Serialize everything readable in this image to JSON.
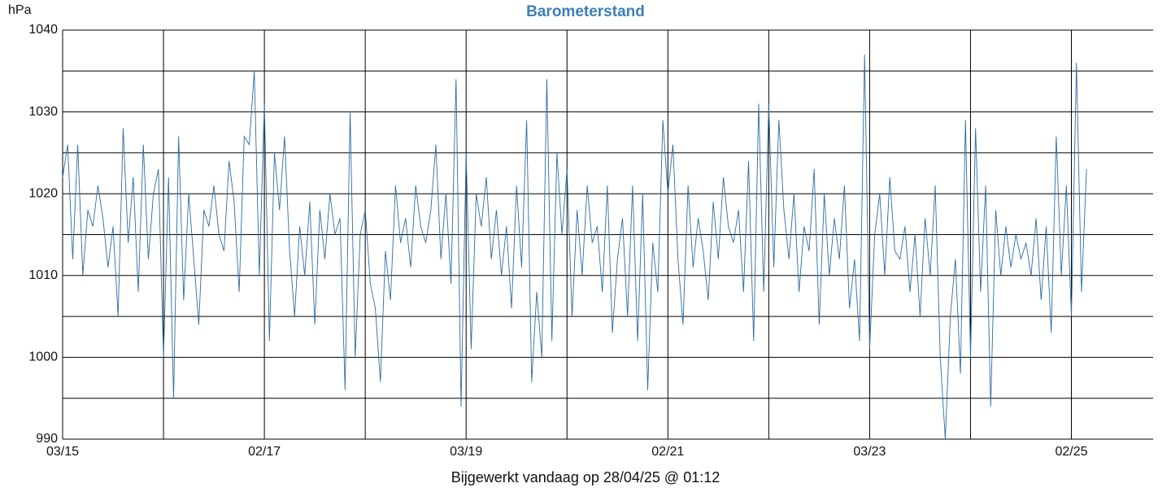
{
  "chart_data": {
    "type": "line",
    "title": "Barometerstand",
    "y_label": "hPa",
    "footer": "Bijgewerkt vandaag op 28/04/25 @ 01:12",
    "x": [
      2015.17,
      2015.22,
      2015.27,
      2015.32,
      2015.37,
      2015.42,
      2015.47,
      2015.52,
      2015.57,
      2015.62,
      2015.67,
      2015.72,
      2015.77,
      2015.82,
      2015.87,
      2015.92,
      2015.97,
      2016.02,
      2016.07,
      2016.12,
      2016.17,
      2016.22,
      2016.27,
      2016.32,
      2016.37,
      2016.42,
      2016.47,
      2016.52,
      2016.57,
      2016.62,
      2016.67,
      2016.72,
      2016.77,
      2016.82,
      2016.87,
      2016.92,
      2016.97,
      2017.02,
      2017.07,
      2017.12,
      2017.17,
      2017.22,
      2017.27,
      2017.32,
      2017.37,
      2017.42,
      2017.47,
      2017.52,
      2017.57,
      2017.62,
      2017.67,
      2017.72,
      2017.77,
      2017.82,
      2017.87,
      2017.92,
      2017.97,
      2018.02,
      2018.07,
      2018.12,
      2018.17,
      2018.22,
      2018.27,
      2018.32,
      2018.37,
      2018.42,
      2018.47,
      2018.52,
      2018.57,
      2018.62,
      2018.67,
      2018.72,
      2018.77,
      2018.82,
      2018.87,
      2018.92,
      2018.97,
      2019.02,
      2019.07,
      2019.12,
      2019.17,
      2019.22,
      2019.27,
      2019.32,
      2019.37,
      2019.42,
      2019.47,
      2019.52,
      2019.57,
      2019.62,
      2019.67,
      2019.72,
      2019.77,
      2019.82,
      2019.87,
      2019.92,
      2019.97,
      2020.02,
      2020.07,
      2020.12,
      2020.17,
      2020.22,
      2020.27,
      2020.32,
      2020.37,
      2020.42,
      2020.47,
      2020.52,
      2020.57,
      2020.62,
      2020.67,
      2020.72,
      2020.77,
      2020.82,
      2020.87,
      2020.92,
      2020.97,
      2021.02,
      2021.07,
      2021.12,
      2021.17,
      2021.22,
      2021.27,
      2021.32,
      2021.37,
      2021.42,
      2021.47,
      2021.52,
      2021.57,
      2021.62,
      2021.67,
      2021.72,
      2021.77,
      2021.82,
      2021.87,
      2021.92,
      2021.97,
      2022.02,
      2022.07,
      2022.12,
      2022.17,
      2022.22,
      2022.27,
      2022.32,
      2022.37,
      2022.42,
      2022.47,
      2022.52,
      2022.57,
      2022.62,
      2022.67,
      2022.72,
      2022.77,
      2022.82,
      2022.87,
      2022.92,
      2022.97,
      2023.02,
      2023.07,
      2023.12,
      2023.17,
      2023.22,
      2023.27,
      2023.32,
      2023.37,
      2023.42,
      2023.47,
      2023.52,
      2023.57,
      2023.62,
      2023.67,
      2023.72,
      2023.77,
      2023.82,
      2023.87,
      2023.92,
      2023.97,
      2024.02,
      2024.07,
      2024.12,
      2024.17,
      2024.22,
      2024.27,
      2024.32,
      2024.37,
      2024.42,
      2024.47,
      2024.52,
      2024.57,
      2024.62,
      2024.67,
      2024.72,
      2024.77,
      2024.82,
      2024.87,
      2024.92,
      2024.97,
      2025.02,
      2025.07,
      2025.12,
      2025.17,
      2025.22,
      2025.27,
      2025.32
    ],
    "series": [
      {
        "color": "#2b6ca3",
        "values": [
          1022,
          1026,
          1012,
          1026,
          1010,
          1018,
          1016,
          1021,
          1017,
          1011,
          1016,
          1005,
          1028,
          1014,
          1022,
          1008,
          1026,
          1012,
          1020,
          1023,
          1000,
          1022,
          995,
          1027,
          1007,
          1020,
          1012,
          1004,
          1018,
          1016,
          1021,
          1015,
          1013,
          1024,
          1019,
          1008,
          1027,
          1026,
          1035,
          1010,
          1031,
          1002,
          1025,
          1018,
          1027,
          1013,
          1005,
          1016,
          1010,
          1019,
          1004,
          1018,
          1012,
          1020,
          1015,
          1017,
          996,
          1030,
          1000,
          1015,
          1018,
          1009,
          1006,
          997,
          1013,
          1007,
          1021,
          1014,
          1017,
          1011,
          1021,
          1016,
          1014,
          1018,
          1026,
          1012,
          1020,
          1009,
          1034,
          994,
          1025,
          1001,
          1020,
          1016,
          1022,
          1012,
          1018,
          1010,
          1016,
          1006,
          1021,
          1011,
          1029,
          997,
          1008,
          1000,
          1034,
          1002,
          1025,
          1015,
          1023,
          1005,
          1018,
          1010,
          1021,
          1014,
          1016,
          1008,
          1021,
          1003,
          1012,
          1017,
          1005,
          1021,
          1002,
          1020,
          996,
          1014,
          1008,
          1029,
          1020,
          1026,
          1012,
          1004,
          1021,
          1011,
          1017,
          1013,
          1007,
          1019,
          1012,
          1022,
          1016,
          1014,
          1018,
          1008,
          1024,
          1002,
          1031,
          1008,
          1031,
          1011,
          1029,
          1018,
          1012,
          1020,
          1008,
          1016,
          1013,
          1023,
          1004,
          1020,
          1010,
          1017,
          1012,
          1021,
          1006,
          1012,
          1002,
          1037,
          1001,
          1015,
          1020,
          1010,
          1022,
          1013,
          1012,
          1016,
          1008,
          1015,
          1005,
          1017,
          1010,
          1021,
          1000,
          990,
          1005,
          1012,
          998,
          1029,
          1000,
          1028,
          1008,
          1021,
          994,
          1018,
          1010,
          1016,
          1011,
          1015,
          1012,
          1014,
          1010,
          1017,
          1007,
          1016,
          1003,
          1027,
          1010,
          1021,
          1005,
          1036,
          1008,
          1023
        ]
      }
    ],
    "xlim": [
      2015.17,
      2025.98
    ],
    "xticks": [
      {
        "value": 2015.17,
        "label": "03/15"
      },
      {
        "value": 2017.17,
        "label": "02/17"
      },
      {
        "value": 2019.17,
        "label": "03/19"
      },
      {
        "value": 2021.17,
        "label": "02/21"
      },
      {
        "value": 2023.17,
        "label": "03/23"
      },
      {
        "value": 2025.17,
        "label": "02/25"
      }
    ],
    "xgrid": [
      2016.17,
      2018.17,
      2020.17,
      2022.17,
      2024.17
    ],
    "ylim": [
      990,
      1040
    ],
    "yticks": [
      990,
      1000,
      1010,
      1020,
      1030,
      1040
    ],
    "ygrid": [
      995,
      1005,
      1015,
      1025,
      1035
    ],
    "grid": true
  }
}
